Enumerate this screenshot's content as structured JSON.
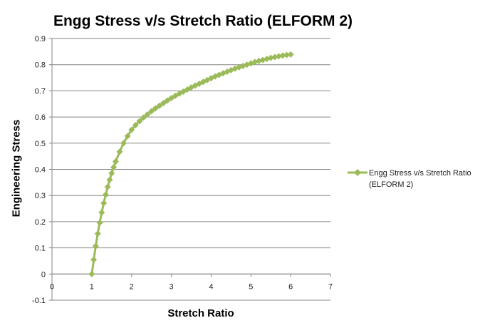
{
  "chart_data": {
    "type": "line",
    "title": "Engg Stress v/s Stretch Ratio (ELFORM 2)",
    "xlabel": "Stretch Ratio",
    "ylabel": "Engineering Stress",
    "xlim": [
      0,
      7
    ],
    "ylim": [
      -0.1,
      0.9
    ],
    "x_ticks": [
      "0",
      "1",
      "2",
      "3",
      "4",
      "5",
      "6",
      "7"
    ],
    "y_ticks": [
      "-0.1",
      "0",
      "0.1",
      "0.2",
      "0.3",
      "0.4",
      "0.5",
      "0.6",
      "0.7",
      "0.8",
      "0.9"
    ],
    "grid": "horizontal",
    "legend_position": "right",
    "color": "#9bbb59",
    "series": [
      {
        "name": "Engg Stress v/s Stretch Ratio (ELFORM 2)",
        "marker": "diamond",
        "x": [
          1.0,
          1.05,
          1.1,
          1.15,
          1.2,
          1.25,
          1.3,
          1.35,
          1.4,
          1.45,
          1.5,
          1.55,
          1.6,
          1.7,
          1.8,
          1.9,
          2.0,
          2.1,
          2.2,
          2.3,
          2.4,
          2.5,
          2.6,
          2.7,
          2.8,
          2.9,
          3.0,
          3.1,
          3.2,
          3.3,
          3.4,
          3.5,
          3.6,
          3.7,
          3.8,
          3.9,
          4.0,
          4.1,
          4.2,
          4.3,
          4.4,
          4.5,
          4.6,
          4.7,
          4.8,
          4.9,
          5.0,
          5.1,
          5.2,
          5.3,
          5.4,
          5.5,
          5.6,
          5.7,
          5.8,
          5.9,
          6.0
        ],
        "y": [
          0.0,
          0.055,
          0.107,
          0.154,
          0.196,
          0.235,
          0.271,
          0.303,
          0.333,
          0.36,
          0.385,
          0.408,
          0.43,
          0.467,
          0.5,
          0.527,
          0.551,
          0.569,
          0.584,
          0.598,
          0.61,
          0.622,
          0.633,
          0.643,
          0.653,
          0.663,
          0.672,
          0.681,
          0.689,
          0.697,
          0.705,
          0.713,
          0.72,
          0.727,
          0.734,
          0.741,
          0.748,
          0.755,
          0.761,
          0.767,
          0.773,
          0.779,
          0.785,
          0.79,
          0.795,
          0.8,
          0.805,
          0.81,
          0.814,
          0.818,
          0.822,
          0.826,
          0.829,
          0.832,
          0.835,
          0.837,
          0.839
        ]
      }
    ]
  }
}
